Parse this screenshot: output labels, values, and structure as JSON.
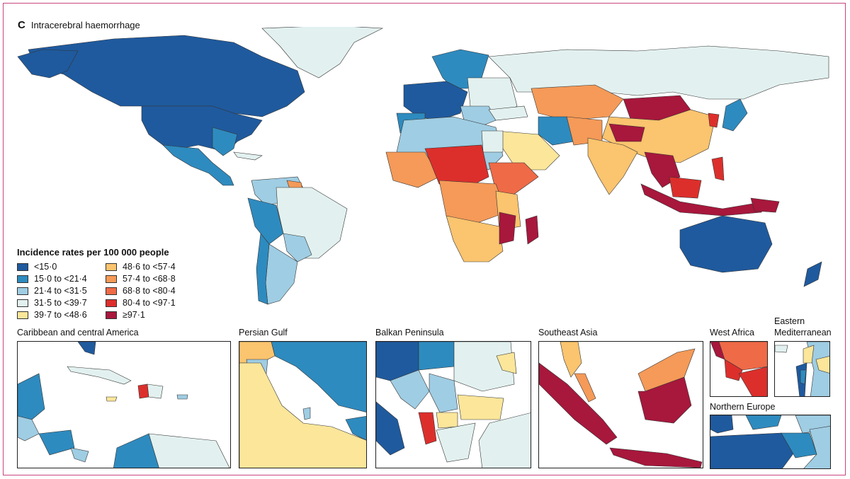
{
  "panel": {
    "letter": "C",
    "title": "Intracerebral haemorrhage"
  },
  "legend": {
    "title": "Incidence rates per 100 000 people",
    "items": [
      {
        "label": "<15·0",
        "color": "#1f5a9e"
      },
      {
        "label": "15·0 to <21·4",
        "color": "#2e8bbf"
      },
      {
        "label": "21·4 to <31·5",
        "color": "#9fcde3"
      },
      {
        "label": "31·5 to <39·7",
        "color": "#e2f1ef"
      },
      {
        "label": "39·7 to <48·6",
        "color": "#fbe69a"
      },
      {
        "label": "48·6 to <57·4",
        "color": "#fbc46e"
      },
      {
        "label": "57·4 to <68·8",
        "color": "#f59a58"
      },
      {
        "label": "68·8 to <80·4",
        "color": "#ef6a47"
      },
      {
        "label": "80·4 to <97·1",
        "color": "#dc2f2c"
      },
      {
        "label": "≥97·1",
        "color": "#a8173c"
      }
    ]
  },
  "insets": [
    {
      "title": "Caribbean and central America"
    },
    {
      "title": "Persian Gulf"
    },
    {
      "title": "Balkan Peninsula"
    },
    {
      "title": "Southeast Asia"
    },
    {
      "title": "West Africa"
    },
    {
      "title": "Eastern Mediterranean"
    },
    {
      "title": "Northern Europe"
    }
  ]
}
